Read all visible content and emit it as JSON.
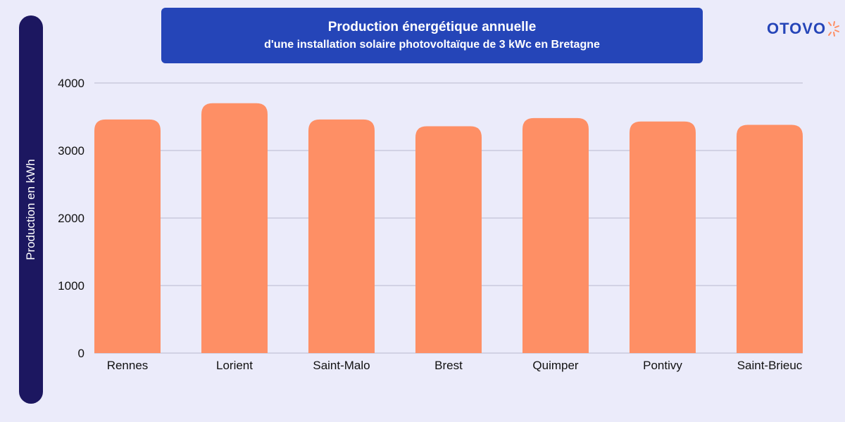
{
  "chart_data": {
    "type": "bar",
    "title": "Production énergétique annuelle",
    "subtitle": "d'une installation solaire photovoltaïque de 3 kWc en Bretagne",
    "ylabel": "Production en kWh",
    "xlabel": "",
    "categories": [
      "Rennes",
      "Lorient",
      "Saint-Malo",
      "Brest",
      "Quimper",
      "Pontivy",
      "Saint-Brieuc"
    ],
    "values": [
      3460,
      3700,
      3460,
      3360,
      3480,
      3430,
      3380
    ],
    "ylim": [
      0,
      4000
    ],
    "yticks": [
      "0",
      "1000",
      "2000",
      "3000",
      "4000"
    ],
    "grid": true,
    "colors": {
      "bar": "#fe8f65",
      "grid": "#b8b8cf",
      "title_bg": "#2545b8",
      "ylabel_bg": "#1c1760"
    }
  },
  "brand": {
    "logo_text": "OTOVO"
  }
}
